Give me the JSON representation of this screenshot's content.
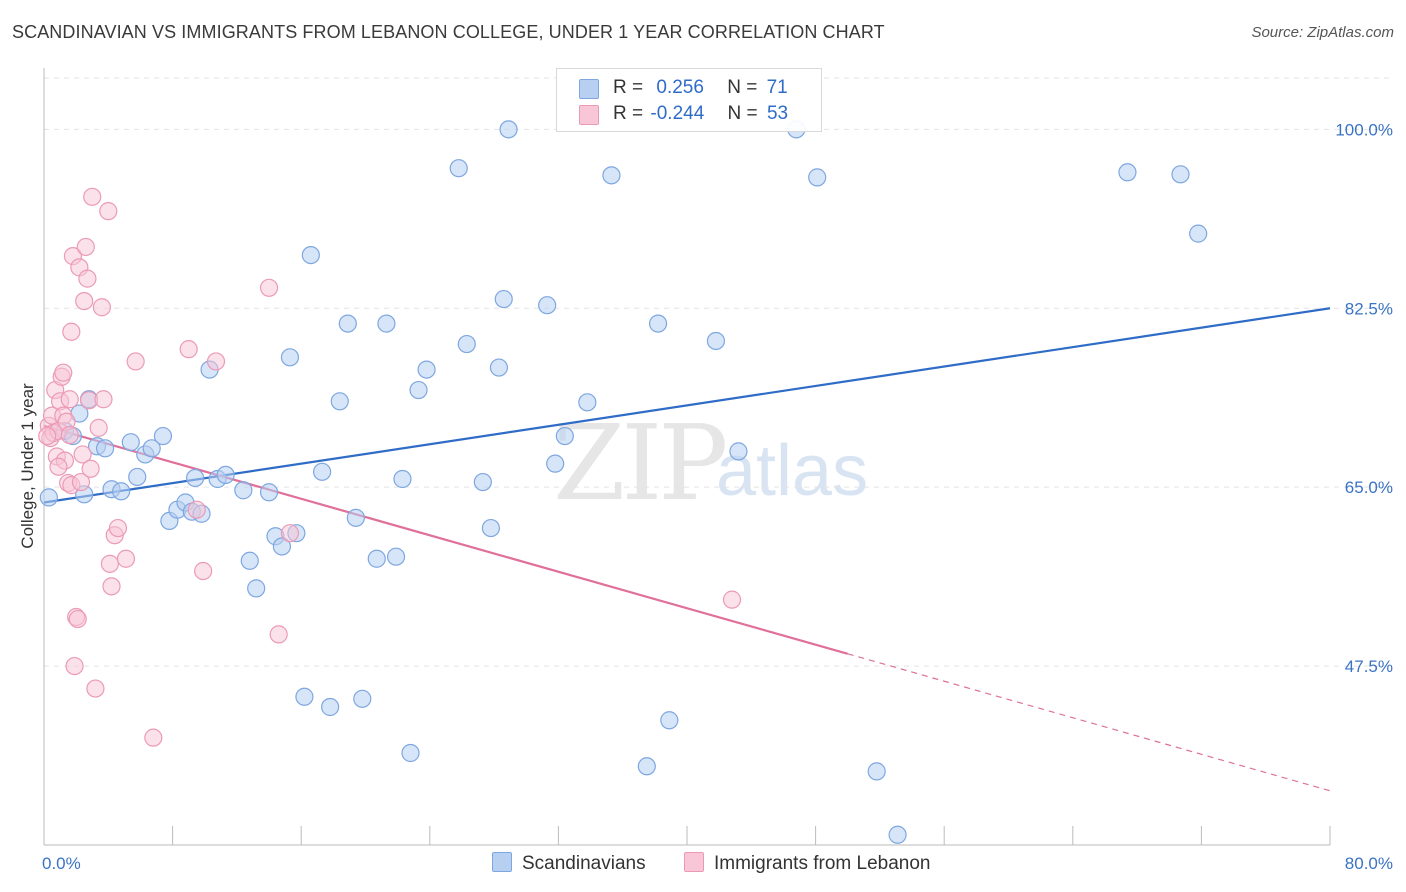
{
  "title": "SCANDINAVIAN VS IMMIGRANTS FROM LEBANON COLLEGE, UNDER 1 YEAR CORRELATION CHART",
  "source": "Source: ZipAtlas.com",
  "watermark": {
    "zip": "ZIP",
    "atlas": "atlas"
  },
  "colors": {
    "blue": "#2f6cc7",
    "pink": "#e0709a",
    "blue_fill": "#b7d0f2",
    "pink_fill": "#f8c6d6"
  },
  "legend": {
    "r_label": "R =",
    "n_label": "N =",
    "rows": [
      {
        "r": "0.256",
        "n": "71"
      },
      {
        "r": "-0.244",
        "n": "53"
      }
    ]
  },
  "chart_data": {
    "type": "scatter",
    "xlabel": "",
    "ylabel": "College, Under 1 year",
    "xlim": [
      0,
      80
    ],
    "ylim": [
      30,
      106
    ],
    "x_ticks": [
      "0.0%",
      "80.0%"
    ],
    "y_ticks": [
      {
        "value": 47.5,
        "label": "47.5%"
      },
      {
        "value": 65.0,
        "label": "65.0%"
      },
      {
        "value": 82.5,
        "label": "82.5%"
      },
      {
        "value": 100.0,
        "label": "100.0%"
      }
    ],
    "grid": true,
    "series": [
      {
        "name": "Scandinavians",
        "trend": {
          "x": [
            0,
            80
          ],
          "y": [
            63.5,
            82.5
          ]
        },
        "points": [
          [
            0.3,
            64.0
          ],
          [
            1.3,
            70.5
          ],
          [
            2.2,
            72.2
          ],
          [
            2.8,
            73.6
          ],
          [
            1.8,
            70.0
          ],
          [
            3.3,
            69.0
          ],
          [
            3.8,
            68.8
          ],
          [
            4.2,
            64.8
          ],
          [
            4.8,
            64.6
          ],
          [
            5.4,
            69.4
          ],
          [
            5.8,
            66.0
          ],
          [
            6.3,
            68.2
          ],
          [
            6.7,
            68.8
          ],
          [
            7.4,
            70.0
          ],
          [
            7.8,
            61.7
          ],
          [
            8.3,
            62.8
          ],
          [
            8.8,
            63.5
          ],
          [
            9.2,
            62.6
          ],
          [
            9.8,
            62.4
          ],
          [
            10.3,
            76.5
          ],
          [
            10.8,
            65.8
          ],
          [
            11.3,
            66.2
          ],
          [
            12.4,
            64.7
          ],
          [
            12.8,
            57.8
          ],
          [
            13.2,
            55.1
          ],
          [
            14.0,
            64.5
          ],
          [
            14.4,
            60.2
          ],
          [
            14.8,
            59.2
          ],
          [
            15.3,
            77.7
          ],
          [
            15.7,
            60.5
          ],
          [
            16.2,
            44.5
          ],
          [
            16.6,
            87.7
          ],
          [
            17.3,
            66.5
          ],
          [
            17.8,
            43.5
          ],
          [
            18.4,
            73.4
          ],
          [
            18.9,
            81.0
          ],
          [
            19.4,
            62.0
          ],
          [
            19.8,
            44.3
          ],
          [
            20.7,
            58.0
          ],
          [
            21.3,
            81.0
          ],
          [
            21.9,
            58.2
          ],
          [
            22.3,
            65.8
          ],
          [
            22.8,
            39.0
          ],
          [
            23.3,
            74.5
          ],
          [
            23.8,
            76.5
          ],
          [
            25.8,
            96.2
          ],
          [
            26.3,
            79.0
          ],
          [
            27.3,
            65.5
          ],
          [
            27.8,
            61.0
          ],
          [
            28.3,
            76.7
          ],
          [
            28.6,
            83.4
          ],
          [
            28.9,
            100.0
          ],
          [
            31.3,
            82.8
          ],
          [
            31.8,
            67.3
          ],
          [
            32.4,
            70.0
          ],
          [
            33.8,
            73.3
          ],
          [
            35.3,
            95.5
          ],
          [
            37.5,
            37.7
          ],
          [
            38.2,
            81.0
          ],
          [
            38.9,
            42.2
          ],
          [
            41.8,
            79.3
          ],
          [
            43.2,
            68.5
          ],
          [
            46.8,
            100.0
          ],
          [
            48.1,
            95.3
          ],
          [
            51.8,
            37.2
          ],
          [
            53.1,
            31.0
          ],
          [
            67.4,
            95.8
          ],
          [
            70.7,
            95.6
          ],
          [
            71.8,
            89.8
          ],
          [
            2.5,
            64.3
          ],
          [
            9.4,
            65.9
          ]
        ]
      },
      {
        "name": "Immigrants from Lebanon",
        "trend": {
          "x": [
            0,
            50
          ],
          "y": [
            71.0,
            48.7
          ]
        },
        "trend_extension": {
          "x": [
            50,
            80
          ],
          "y": [
            48.7,
            35.3
          ]
        },
        "points": [
          [
            0.3,
            71.0
          ],
          [
            0.4,
            69.8
          ],
          [
            0.5,
            72.0
          ],
          [
            0.6,
            70.3
          ],
          [
            0.7,
            74.5
          ],
          [
            0.8,
            68.0
          ],
          [
            0.9,
            70.5
          ],
          [
            1.0,
            73.4
          ],
          [
            1.1,
            75.8
          ],
          [
            1.2,
            76.2
          ],
          [
            1.2,
            72.0
          ],
          [
            1.3,
            67.6
          ],
          [
            1.4,
            71.4
          ],
          [
            1.5,
            65.4
          ],
          [
            1.6,
            73.6
          ],
          [
            1.7,
            65.2
          ],
          [
            1.7,
            80.2
          ],
          [
            1.8,
            87.6
          ],
          [
            1.9,
            47.5
          ],
          [
            2.0,
            52.3
          ],
          [
            2.2,
            86.5
          ],
          [
            2.3,
            65.5
          ],
          [
            2.4,
            68.2
          ],
          [
            2.5,
            83.2
          ],
          [
            2.6,
            88.5
          ],
          [
            2.7,
            85.4
          ],
          [
            2.8,
            73.5
          ],
          [
            2.9,
            66.8
          ],
          [
            3.0,
            93.4
          ],
          [
            3.2,
            45.3
          ],
          [
            3.4,
            70.8
          ],
          [
            3.6,
            82.6
          ],
          [
            3.7,
            73.6
          ],
          [
            4.0,
            92.0
          ],
          [
            4.1,
            57.5
          ],
          [
            4.2,
            55.3
          ],
          [
            4.4,
            60.3
          ],
          [
            4.6,
            61.0
          ],
          [
            5.1,
            58.0
          ],
          [
            5.7,
            77.3
          ],
          [
            6.8,
            40.5
          ],
          [
            9.0,
            78.5
          ],
          [
            9.5,
            62.8
          ],
          [
            9.9,
            56.8
          ],
          [
            10.7,
            77.3
          ],
          [
            14.0,
            84.5
          ],
          [
            14.6,
            50.6
          ],
          [
            15.3,
            60.5
          ],
          [
            42.8,
            54.0
          ],
          [
            0.2,
            70.0
          ],
          [
            1.6,
            70.1
          ],
          [
            2.1,
            52.1
          ],
          [
            0.9,
            67.0
          ]
        ]
      }
    ]
  },
  "bottom_legend": [
    "Scandinavians",
    "Immigrants from Lebanon"
  ]
}
